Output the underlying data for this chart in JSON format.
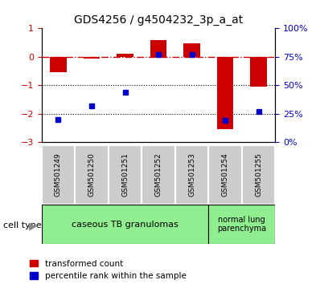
{
  "title": "GDS4256 / g4504232_3p_a_at",
  "samples": [
    "GSM501249",
    "GSM501250",
    "GSM501251",
    "GSM501252",
    "GSM501253",
    "GSM501254",
    "GSM501255"
  ],
  "transformed_counts": [
    -0.55,
    -0.05,
    0.1,
    0.58,
    0.48,
    -2.55,
    -1.05
  ],
  "percentile_ranks": [
    20,
    32,
    44,
    77,
    77,
    19,
    27
  ],
  "ylim_left": [
    -3,
    1
  ],
  "ylim_right": [
    0,
    100
  ],
  "left_yticks": [
    -3,
    -2,
    -1,
    0,
    1
  ],
  "right_yticks": [
    0,
    25,
    50,
    75,
    100
  ],
  "right_yticklabels": [
    "0%",
    "25%",
    "50%",
    "75%",
    "100%"
  ],
  "red_color": "#CC0000",
  "blue_color": "#0000CC",
  "bar_width": 0.5,
  "blue_marker_size": 5,
  "legend_red_label": "transformed count",
  "legend_blue_label": "percentile rank within the sample",
  "cell_type_label": "cell type",
  "group1_label": "caseous TB granulomas",
  "group2_label": "normal lung\nparenchyma",
  "group_bg_color": "#90EE90"
}
